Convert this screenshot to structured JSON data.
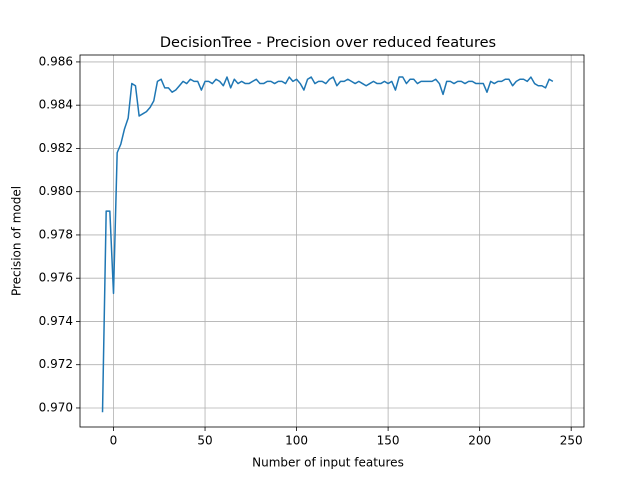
{
  "chart_data": {
    "type": "line",
    "title": "DecisionTree - Precision over reduced features",
    "xlabel": "Number of input features",
    "ylabel": "Precision of model",
    "x": [
      -6,
      -4,
      -2,
      0,
      2,
      4,
      6,
      8,
      10,
      12,
      14,
      16,
      18,
      20,
      22,
      24,
      26,
      28,
      30,
      32,
      34,
      36,
      38,
      40,
      42,
      44,
      46,
      48,
      50,
      52,
      54,
      56,
      58,
      60,
      62,
      64,
      66,
      68,
      70,
      72,
      74,
      76,
      78,
      80,
      82,
      84,
      86,
      88,
      90,
      92,
      94,
      96,
      98,
      100,
      102,
      104,
      106,
      108,
      110,
      112,
      114,
      116,
      118,
      120,
      122,
      124,
      126,
      128,
      130,
      132,
      134,
      136,
      138,
      140,
      142,
      144,
      146,
      148,
      150,
      152,
      154,
      156,
      158,
      160,
      162,
      164,
      166,
      168,
      170,
      172,
      174,
      176,
      178,
      180,
      182,
      184,
      186,
      188,
      190,
      192,
      194,
      196,
      198,
      200,
      202,
      204,
      206,
      208,
      210,
      212,
      214,
      216,
      218,
      220,
      222,
      224,
      226,
      228,
      230,
      232,
      234,
      236,
      238,
      240
    ],
    "series": [
      {
        "name": "precision",
        "color": "#1f77b4",
        "values": [
          0.9698,
          0.9791,
          0.9791,
          0.9753,
          0.9818,
          0.9822,
          0.9829,
          0.9834,
          0.985,
          0.9849,
          0.9835,
          0.9836,
          0.9837,
          0.9839,
          0.9842,
          0.9851,
          0.9852,
          0.9848,
          0.9848,
          0.9846,
          0.9847,
          0.9849,
          0.9851,
          0.985,
          0.9852,
          0.9851,
          0.9851,
          0.9847,
          0.9851,
          0.9851,
          0.985,
          0.9852,
          0.9851,
          0.9849,
          0.9853,
          0.9848,
          0.9852,
          0.985,
          0.9851,
          0.985,
          0.985,
          0.9851,
          0.9852,
          0.985,
          0.985,
          0.9851,
          0.9851,
          0.985,
          0.9851,
          0.9851,
          0.985,
          0.9853,
          0.9851,
          0.9852,
          0.985,
          0.9847,
          0.9852,
          0.9853,
          0.985,
          0.9851,
          0.9851,
          0.985,
          0.9852,
          0.9853,
          0.9849,
          0.9851,
          0.9851,
          0.9852,
          0.9851,
          0.985,
          0.9851,
          0.985,
          0.9849,
          0.985,
          0.9851,
          0.985,
          0.985,
          0.9851,
          0.985,
          0.9851,
          0.9847,
          0.9853,
          0.9853,
          0.985,
          0.9852,
          0.9852,
          0.985,
          0.9851,
          0.9851,
          0.9851,
          0.9851,
          0.9852,
          0.985,
          0.9845,
          0.9851,
          0.9851,
          0.985,
          0.9851,
          0.9851,
          0.985,
          0.9851,
          0.9851,
          0.985,
          0.985,
          0.985,
          0.9846,
          0.9851,
          0.985,
          0.9851,
          0.9851,
          0.9852,
          0.9852,
          0.9849,
          0.9851,
          0.9852,
          0.9852,
          0.9851,
          0.9853,
          0.985,
          0.9849,
          0.9849,
          0.9848,
          0.9852,
          0.9851
        ]
      }
    ],
    "xlim": [
      -18.3,
      257
    ],
    "xticks": [
      0,
      50,
      100,
      150,
      200,
      250
    ],
    "ylim": [
      0.96912,
      0.98632
    ],
    "yticks": [
      {
        "value": 0.97,
        "label": "0.970"
      },
      0.972,
      0.974,
      0.976,
      0.978,
      {
        "value": 0.98,
        "label": "0.980"
      },
      0.982,
      0.984,
      0.986
    ],
    "grid": true
  }
}
